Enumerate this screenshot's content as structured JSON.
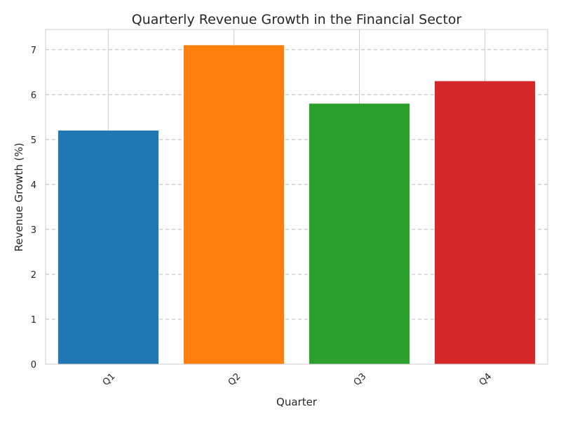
{
  "chart_data": {
    "type": "bar",
    "title": "Quarterly Revenue Growth in the Financial Sector",
    "xlabel": "Quarter",
    "ylabel": "Revenue Growth (%)",
    "categories": [
      "Q1",
      "Q2",
      "Q3",
      "Q4"
    ],
    "values": [
      5.2,
      7.1,
      5.8,
      6.3
    ],
    "colors": [
      "#1f77b4",
      "#ff7f0e",
      "#2ca02c",
      "#d62728"
    ],
    "ylim": [
      0,
      7.45
    ],
    "yticks": [
      "0",
      "1",
      "2",
      "3",
      "4",
      "5",
      "6",
      "7"
    ],
    "xtick_rotation": 45,
    "grid": true,
    "grid_style": "dashed",
    "legend": "none"
  }
}
